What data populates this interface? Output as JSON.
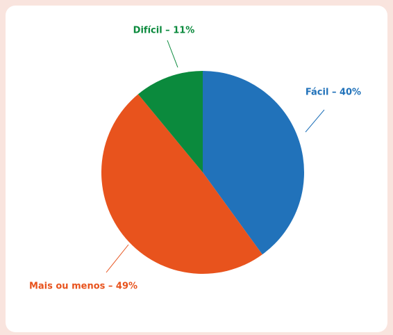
{
  "chart_data": {
    "type": "pie",
    "categories": [
      "Fácil – 40%",
      "Mais ou menos – 49%",
      "Difícil – 11%"
    ],
    "values": [
      40,
      49,
      11
    ],
    "colors": [
      "#2172ba",
      "#e8531d",
      "#0b8a3d"
    ]
  }
}
